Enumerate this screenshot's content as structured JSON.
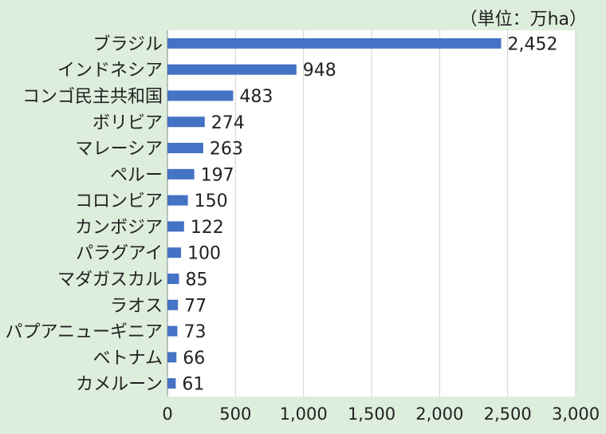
{
  "unit_label": "（単位：万ha）",
  "chart_data": {
    "type": "bar",
    "orientation": "horizontal",
    "categories": [
      "ブラジル",
      "インドネシア",
      "コンゴ民主共和国",
      "ボリビア",
      "マレーシア",
      "ペルー",
      "コロンビア",
      "カンボジア",
      "パラグアイ",
      "マダガスカル",
      "ラオス",
      "パプアニューギニア",
      "ベトナム",
      "カメルーン"
    ],
    "values": [
      2452,
      948,
      483,
      274,
      263,
      197,
      150,
      122,
      100,
      85,
      77,
      73,
      66,
      61
    ],
    "value_labels": [
      "2,452",
      "948",
      "483",
      "274",
      "263",
      "197",
      "150",
      "122",
      "100",
      "85",
      "77",
      "73",
      "66",
      "61"
    ],
    "xlim": [
      0,
      3000
    ],
    "ticks": [
      0,
      500,
      1000,
      1500,
      2000,
      2500,
      3000
    ],
    "tick_labels": [
      "0",
      "500",
      "1,000",
      "1,500",
      "2,000",
      "2,500",
      "3,000"
    ],
    "bar_color": "#4472c4",
    "grid": "vertical"
  }
}
